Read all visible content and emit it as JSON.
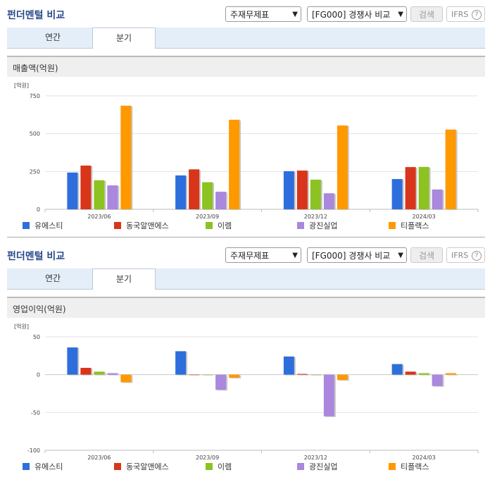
{
  "colors": [
    "#2e6edc",
    "#d8351a",
    "#8cc222",
    "#a988dd",
    "#ff9900"
  ],
  "legend": [
    "유에스티",
    "동국알앤에스",
    "이렘",
    "광진실업",
    "티플랙스"
  ],
  "panels": [
    {
      "title": "펀더멘털 비교",
      "select1": "주재무제표",
      "select2": "[FG000] 경쟁사 비교",
      "search_label": "검색",
      "ifrs_label": "IFRS",
      "help_label": "?",
      "tabs": [
        "연간",
        "분기"
      ],
      "active_tab": 1,
      "subtitle": "매출액(억원)",
      "unit": "[억원]"
    },
    {
      "title": "펀더멘털 비교",
      "select1": "주재무제표",
      "select2": "[FG000] 경쟁사 비교",
      "search_label": "검색",
      "ifrs_label": "IFRS",
      "help_label": "?",
      "tabs": [
        "연간",
        "분기"
      ],
      "active_tab": 1,
      "subtitle": "영업이익(억원)",
      "unit": "[억원]"
    }
  ],
  "chart_data": [
    {
      "type": "bar",
      "title": "매출액(억원)",
      "categories": [
        "2023/06",
        "2023/09",
        "2023/12",
        "2024/03"
      ],
      "ylim": [
        0,
        750
      ],
      "yticks": [
        0,
        250,
        500,
        750
      ],
      "ytick_labels": [
        "0",
        "250",
        "500",
        "750"
      ],
      "grid": true,
      "legend_position": "bottom",
      "series": [
        {
          "name": "유에스티",
          "values": [
            243,
            224,
            252,
            200
          ]
        },
        {
          "name": "동국알앤에스",
          "values": [
            289,
            264,
            256,
            279
          ]
        },
        {
          "name": "이렘",
          "values": [
            192,
            179,
            196,
            280
          ]
        },
        {
          "name": "광진실업",
          "values": [
            158,
            116,
            106,
            131
          ]
        },
        {
          "name": "티플랙스",
          "values": [
            685,
            592,
            554,
            527
          ]
        }
      ]
    },
    {
      "type": "bar",
      "title": "영업이익(억원)",
      "categories": [
        "2023/06",
        "2023/09",
        "2023/12",
        "2024/03"
      ],
      "ylim": [
        -100,
        50
      ],
      "yticks": [
        -100,
        -50,
        0,
        50
      ],
      "ytick_labels": [
        "-100",
        "-50",
        "0",
        "50"
      ],
      "grid": true,
      "legend_position": "bottom",
      "series": [
        {
          "name": "유에스티",
          "values": [
            36,
            31,
            24,
            14
          ]
        },
        {
          "name": "동국알앤에스",
          "values": [
            9,
            0,
            1,
            4
          ]
        },
        {
          "name": "이렘",
          "values": [
            4,
            0,
            0,
            2
          ]
        },
        {
          "name": "광진실업",
          "values": [
            2,
            -20,
            -55,
            -15
          ]
        },
        {
          "name": "티플랙스",
          "values": [
            -10,
            -4,
            -7,
            2
          ]
        }
      ]
    }
  ]
}
